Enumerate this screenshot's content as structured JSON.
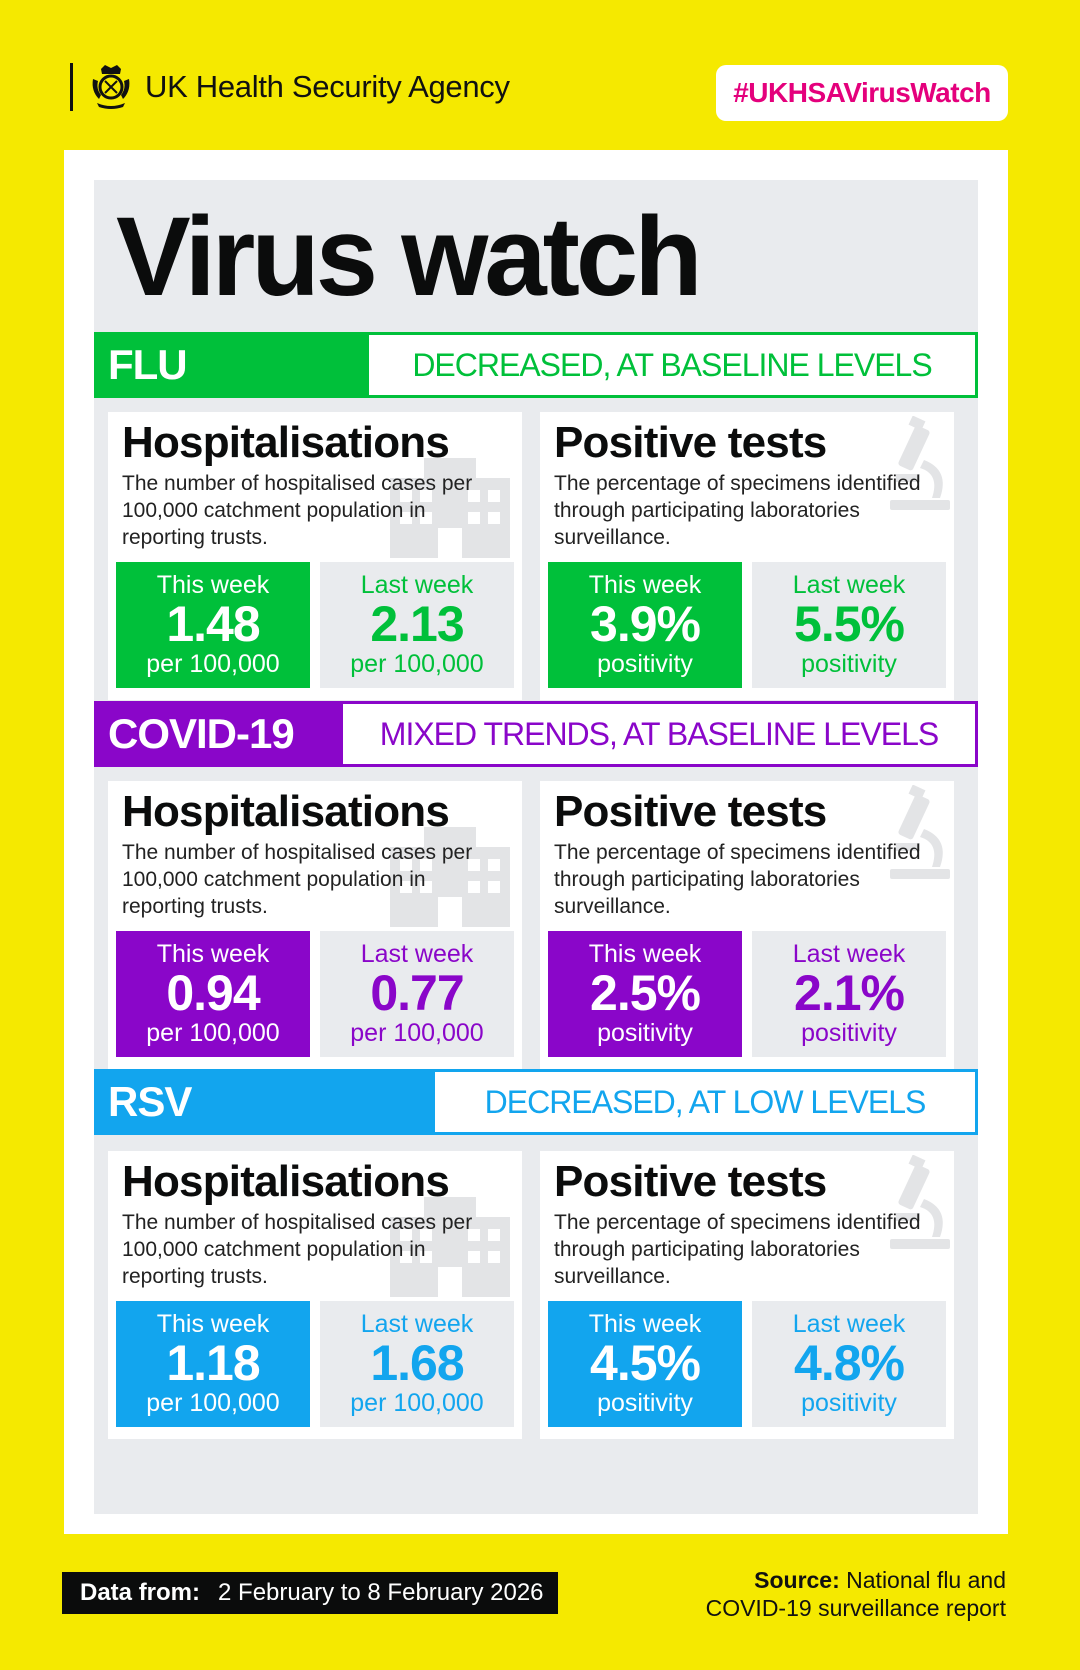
{
  "header": {
    "agency": "UK Health Security Agency",
    "hashtag": "#UKHSAVirusWatch"
  },
  "title": "Virus watch",
  "sections": [
    {
      "name": "FLU",
      "status": "DECREASED, AT BASELINE LEVELS",
      "color": "#00c03a",
      "hosp": {
        "title": "Hospitalisations",
        "desc": "The number of hospitalised cases per 100,000 catchment population in reporting trusts.",
        "this_label": "This week",
        "this_value": "1.48",
        "this_unit": "per 100,000",
        "last_label": "Last week",
        "last_value": "2.13",
        "last_unit": "per 100,000"
      },
      "tests": {
        "title": "Positive tests",
        "desc": "The percentage of specimens identified through participating laboratories surveillance.",
        "this_label": "This week",
        "this_value": "3.9%",
        "this_unit": "positivity",
        "last_label": "Last week",
        "last_value": "5.5%",
        "last_unit": "positivity"
      }
    },
    {
      "name": "COVID-19",
      "status": "MIXED TRENDS, AT BASELINE LEVELS",
      "color": "#8a06c9",
      "hosp": {
        "title": "Hospitalisations",
        "desc": "The number of hospitalised cases per 100,000 catchment population in reporting trusts.",
        "this_label": "This week",
        "this_value": "0.94",
        "this_unit": "per 100,000",
        "last_label": "Last week",
        "last_value": "0.77",
        "last_unit": "per 100,000"
      },
      "tests": {
        "title": "Positive tests",
        "desc": "The percentage of specimens identified through participating laboratories surveillance.",
        "this_label": "This week",
        "this_value": "2.5%",
        "this_unit": "positivity",
        "last_label": "Last week",
        "last_value": "2.1%",
        "last_unit": "positivity"
      }
    },
    {
      "name": "RSV",
      "status": "DECREASED, AT LOW LEVELS",
      "color": "#12a5ee",
      "hosp": {
        "title": "Hospitalisations",
        "desc": "The number of hospitalised cases per 100,000 catchment population in reporting trusts.",
        "this_label": "This week",
        "this_value": "1.18",
        "this_unit": "per 100,000",
        "last_label": "Last week",
        "last_value": "1.68",
        "last_unit": "per 100,000"
      },
      "tests": {
        "title": "Positive tests",
        "desc": "The percentage of specimens identified through participating laboratories surveillance.",
        "this_label": "This week",
        "this_value": "4.5%",
        "this_unit": "positivity",
        "last_label": "Last week",
        "last_value": "4.8%",
        "last_unit": "positivity"
      }
    }
  ],
  "footer": {
    "data_from_label": "Data from:",
    "data_from_value": "2 February to 8 February 2026",
    "source_label": "Source:",
    "source_line1": " National flu and",
    "source_line2": "COVID-19 surveillance report"
  }
}
